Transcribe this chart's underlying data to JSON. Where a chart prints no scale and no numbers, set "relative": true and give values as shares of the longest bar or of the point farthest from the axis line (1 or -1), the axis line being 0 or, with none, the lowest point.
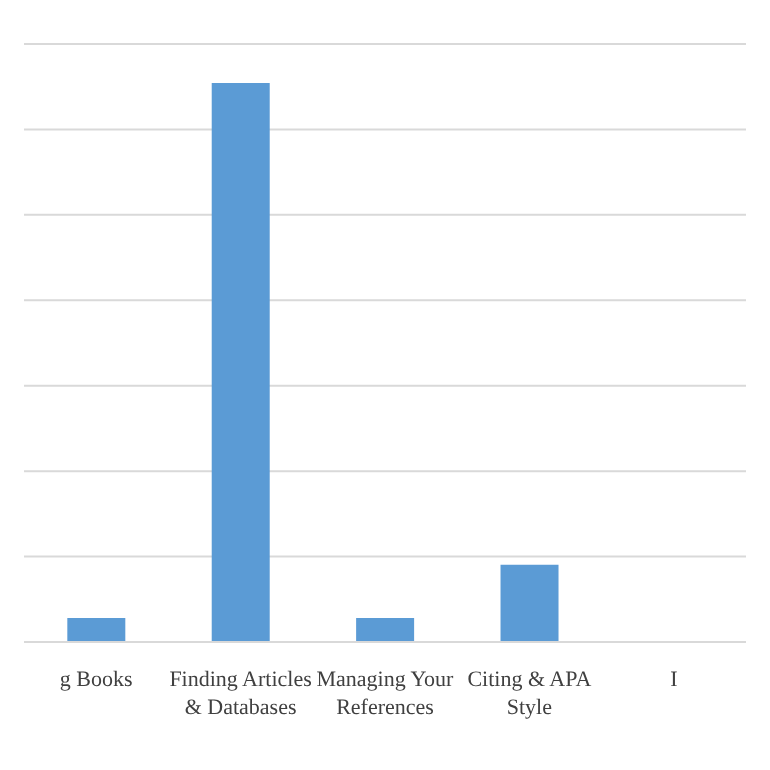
{
  "chart_data": {
    "type": "bar",
    "relative": true,
    "grid": "y",
    "categories": [
      "g Books",
      "Finding Articles & Databases",
      "Managing Your References",
      "Citing & APA Style",
      "I"
    ],
    "series": [
      {
        "color": "#5b9bd5",
        "values": [
          0.043,
          1,
          0.043,
          0.138,
          null
        ]
      }
    ]
  }
}
